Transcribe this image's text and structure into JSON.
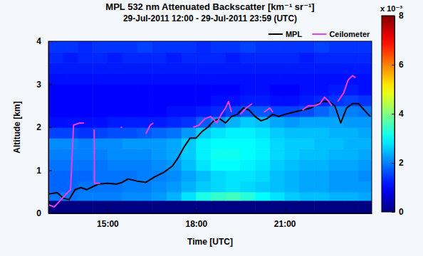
{
  "chart_data": {
    "type": "heatmap",
    "title": "MPL 532 nm Attenuated Backscatter [km⁻¹ sr⁻¹]",
    "subtitle": "29-Jul-2011 12:00 - 29-Jul-2011 23:59 (UTC)",
    "x_label": "Time [UTC]",
    "y_label": "Altitude [km]",
    "xlim": [
      13.0,
      23.95
    ],
    "xticks": [
      {
        "value": 15,
        "label": "15:00"
      },
      {
        "value": 18,
        "label": "18:00"
      },
      {
        "value": 21,
        "label": "21:00"
      }
    ],
    "ylim": [
      0,
      4
    ],
    "yticks": [
      0,
      1,
      2,
      3,
      4
    ],
    "grid": false,
    "legend": "top",
    "x_edges": [
      13.0,
      13.5,
      14.0,
      14.5,
      15.0,
      15.5,
      16.0,
      16.5,
      17.0,
      17.5,
      18.0,
      18.5,
      19.0,
      19.5,
      20.0,
      20.5,
      21.0,
      21.5,
      22.0,
      22.5,
      23.0,
      23.5,
      24.0
    ],
    "y_edges": [
      0,
      0.3,
      0.5,
      0.75,
      1.0,
      1.25,
      1.5,
      1.75,
      2.0,
      2.25,
      2.5,
      2.75,
      3.0,
      3.25,
      3.5,
      3.75,
      4.0
    ],
    "z": [
      [
        0,
        0,
        0,
        0,
        0,
        0,
        0,
        0,
        0,
        0,
        0,
        0,
        0,
        0,
        0,
        0,
        0,
        0,
        0,
        0,
        0,
        0
      ],
      [
        1.9,
        1.9,
        2.0,
        2.0,
        2.0,
        2.1,
        2.1,
        2.2,
        2.4,
        2.8,
        3.2,
        3.4,
        3.5,
        3.3,
        3.0,
        2.8,
        2.6,
        2.5,
        2.5,
        2.4,
        2.4,
        2.3
      ],
      [
        1.8,
        1.8,
        1.9,
        1.9,
        1.9,
        2.0,
        2.0,
        2.1,
        2.2,
        2.4,
        2.6,
        2.7,
        2.8,
        2.7,
        2.6,
        2.5,
        2.4,
        2.3,
        2.3,
        2.2,
        2.2,
        2.2
      ],
      [
        1.8,
        1.8,
        1.8,
        1.9,
        1.9,
        1.9,
        2.0,
        2.0,
        2.1,
        2.3,
        2.5,
        2.7,
        2.8,
        2.8,
        2.7,
        2.5,
        2.4,
        2.3,
        2.3,
        2.2,
        2.2,
        2.1
      ],
      [
        1.9,
        1.9,
        1.9,
        1.9,
        2.0,
        2.0,
        2.0,
        2.1,
        2.2,
        2.5,
        2.8,
        3.0,
        3.0,
        2.9,
        2.8,
        2.6,
        2.5,
        2.4,
        2.4,
        2.3,
        2.3,
        2.2
      ],
      [
        2.0,
        2.0,
        2.0,
        2.0,
        2.1,
        2.1,
        2.1,
        2.2,
        2.3,
        2.6,
        2.9,
        3.1,
        3.1,
        3.0,
        2.9,
        2.7,
        2.6,
        2.5,
        2.5,
        2.4,
        2.4,
        2.3
      ],
      [
        2.1,
        2.1,
        2.0,
        2.1,
        2.1,
        2.2,
        2.2,
        2.2,
        2.3,
        2.6,
        2.9,
        3.0,
        3.0,
        3.0,
        2.9,
        2.7,
        2.6,
        2.6,
        2.5,
        2.5,
        2.4,
        2.4
      ],
      [
        1.5,
        1.5,
        1.4,
        1.5,
        1.6,
        1.6,
        1.7,
        1.8,
        1.9,
        2.2,
        2.6,
        2.8,
        2.9,
        2.9,
        2.8,
        2.6,
        2.5,
        2.5,
        2.5,
        2.4,
        2.4,
        2.3
      ],
      [
        1.1,
        1.1,
        1.1,
        1.1,
        1.2,
        1.2,
        1.2,
        1.2,
        1.3,
        1.4,
        1.7,
        2.1,
        2.4,
        2.6,
        2.5,
        2.3,
        2.2,
        2.3,
        2.3,
        2.3,
        2.2,
        2.2
      ],
      [
        1.0,
        1.0,
        1.0,
        1.0,
        1.0,
        1.0,
        1.0,
        1.0,
        1.1,
        1.1,
        1.2,
        1.3,
        1.5,
        1.7,
        1.7,
        1.5,
        1.5,
        1.6,
        1.8,
        2.0,
        2.0,
        1.9
      ],
      [
        1.0,
        1.0,
        1.0,
        1.0,
        1.0,
        1.0,
        1.0,
        1.0,
        1.0,
        1.0,
        1.0,
        1.1,
        1.1,
        1.2,
        1.2,
        1.1,
        1.1,
        1.2,
        1.3,
        1.4,
        1.5,
        1.4
      ],
      [
        1.0,
        1.0,
        1.0,
        1.0,
        1.0,
        1.0,
        1.0,
        1.0,
        1.0,
        1.0,
        1.0,
        1.0,
        1.0,
        1.1,
        1.1,
        1.0,
        1.0,
        1.1,
        1.1,
        1.2,
        1.2,
        1.1
      ],
      [
        1.1,
        1.1,
        1.1,
        1.1,
        1.1,
        1.1,
        1.1,
        1.1,
        1.1,
        1.1,
        1.1,
        1.1,
        1.1,
        1.1,
        1.1,
        1.1,
        1.1,
        1.1,
        1.1,
        1.1,
        1.1,
        1.1
      ],
      [
        1.2,
        1.2,
        1.2,
        1.2,
        1.2,
        1.2,
        1.2,
        1.2,
        1.2,
        1.2,
        1.2,
        1.2,
        1.2,
        1.2,
        1.2,
        1.2,
        1.2,
        1.2,
        1.2,
        1.2,
        1.2,
        1.2
      ],
      [
        1.3,
        1.2,
        1.3,
        1.3,
        1.2,
        1.3,
        1.3,
        1.3,
        1.2,
        1.3,
        1.3,
        1.3,
        1.2,
        1.3,
        1.3,
        1.3,
        1.3,
        1.2,
        1.3,
        1.3,
        1.3,
        1.3
      ],
      [
        1.4,
        1.4,
        1.3,
        1.4,
        1.4,
        1.4,
        1.5,
        1.4,
        1.4,
        1.4,
        1.3,
        1.4,
        1.4,
        1.5,
        1.4,
        1.4,
        1.4,
        1.4,
        1.5,
        1.4,
        1.4,
        1.4
      ]
    ],
    "colorbar": {
      "lim": [
        0,
        8
      ],
      "ticks": [
        0,
        2,
        4,
        6,
        8
      ],
      "title": "x 10⁻³"
    },
    "series": [
      {
        "name": "MPL",
        "type": "line",
        "color": "#000000",
        "x": [
          13.0,
          13.3,
          13.5,
          13.7,
          13.9,
          14.1,
          14.3,
          14.5,
          14.7,
          15.0,
          15.3,
          15.5,
          15.7,
          16.0,
          16.3,
          16.6,
          16.9,
          17.2,
          17.4,
          17.6,
          17.8,
          18.0,
          18.2,
          18.4,
          18.6,
          18.8,
          19.0,
          19.2,
          19.4,
          19.6,
          19.8,
          20.0,
          20.2,
          20.4,
          20.6,
          20.8,
          21.0,
          21.3,
          21.6,
          21.9,
          22.1,
          22.3,
          22.5,
          22.7,
          22.9,
          23.1,
          23.3,
          23.5,
          23.7,
          23.9
        ],
        "values": [
          0.45,
          0.48,
          0.35,
          0.32,
          0.55,
          0.6,
          0.55,
          0.62,
          0.68,
          0.7,
          0.68,
          0.72,
          0.8,
          0.75,
          0.72,
          0.85,
          0.95,
          1.1,
          1.3,
          1.55,
          1.75,
          1.75,
          1.9,
          2.0,
          2.15,
          2.2,
          2.1,
          2.25,
          2.3,
          2.45,
          2.4,
          2.25,
          2.15,
          2.2,
          2.3,
          2.25,
          2.3,
          2.35,
          2.4,
          2.45,
          2.55,
          2.6,
          2.6,
          2.5,
          2.1,
          2.45,
          2.55,
          2.55,
          2.4,
          2.25
        ]
      },
      {
        "name": "Ceilometer",
        "type": "line",
        "color": "#f03cf0",
        "x": [
          13.0,
          13.2,
          13.4,
          13.6,
          13.75,
          13.85,
          14.05,
          14.2,
          14.3,
          14.55,
          14.56,
          14.75,
          14.9,
          15.45,
          15.5,
          15.7,
          16.3,
          16.45,
          16.55,
          16.7,
          17.9,
          18.1,
          18.3,
          18.5,
          18.7,
          18.85,
          19.0,
          19.1,
          19.2,
          19.3,
          19.5,
          19.7,
          19.9,
          20.1,
          20.3,
          20.5,
          20.6,
          20.7,
          21.6,
          21.8,
          22.0,
          22.2,
          22.35,
          22.5,
          22.6,
          22.7,
          22.8,
          23.0,
          23.15,
          23.3,
          23.4
        ],
        "values": [
          0.2,
          0.15,
          0.3,
          0.45,
          0.55,
          2.05,
          2.1,
          2.1,
          null,
          1.95,
          0.7,
          0.7,
          null,
          2.0,
          2.0,
          null,
          1.85,
          2.05,
          2.1,
          null,
          2.0,
          2.05,
          2.2,
          2.25,
          2.1,
          2.3,
          2.45,
          2.6,
          2.35,
          null,
          2.3,
          2.45,
          2.55,
          null,
          2.35,
          2.45,
          2.35,
          null,
          2.4,
          2.5,
          2.5,
          2.55,
          2.7,
          2.6,
          2.5,
          null,
          2.6,
          2.8,
          3.1,
          3.2,
          3.15
        ]
      }
    ]
  }
}
